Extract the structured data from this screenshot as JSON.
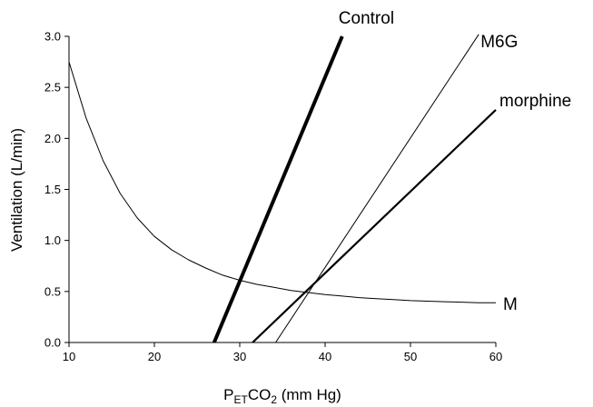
{
  "chart_data": {
    "type": "line",
    "title": "",
    "xlabel": {
      "main": "P",
      "sub": "ET",
      "mid": "CO",
      "sub2": "2",
      "rest": " (mm Hg)"
    },
    "ylabel": "Ventilation (L/min)",
    "xlim": [
      10,
      60
    ],
    "ylim": [
      0,
      3.0
    ],
    "xticks": [
      "10",
      "20",
      "30",
      "40",
      "50",
      "60"
    ],
    "yticks": [
      "0.0",
      "0.5",
      "1.0",
      "1.5",
      "2.0",
      "2.5",
      "3.0"
    ],
    "grid": false,
    "series": [
      {
        "name": "Control",
        "kind": "line",
        "points": [
          [
            27.0,
            0.0
          ],
          [
            42.0,
            3.0
          ]
        ],
        "weight": "heavy"
      },
      {
        "name": "M6G",
        "kind": "line",
        "points": [
          [
            34.2,
            0.0
          ],
          [
            58.0,
            3.02
          ]
        ],
        "weight": "thin"
      },
      {
        "name": "morphine",
        "kind": "line",
        "points": [
          [
            31.5,
            0.0
          ],
          [
            60.0,
            2.28
          ]
        ],
        "weight": "medium"
      },
      {
        "name": "M",
        "kind": "curve",
        "points": [
          [
            10,
            2.75
          ],
          [
            12,
            2.2
          ],
          [
            14,
            1.78
          ],
          [
            16,
            1.46
          ],
          [
            18,
            1.22
          ],
          [
            20,
            1.04
          ],
          [
            22,
            0.91
          ],
          [
            24,
            0.81
          ],
          [
            26,
            0.73
          ],
          [
            28,
            0.66
          ],
          [
            30,
            0.61
          ],
          [
            32,
            0.57
          ],
          [
            34,
            0.54
          ],
          [
            36,
            0.51
          ],
          [
            38,
            0.49
          ],
          [
            40,
            0.47
          ],
          [
            42,
            0.455
          ],
          [
            44,
            0.44
          ],
          [
            46,
            0.43
          ],
          [
            48,
            0.42
          ],
          [
            50,
            0.41
          ],
          [
            52,
            0.405
          ],
          [
            54,
            0.4
          ],
          [
            56,
            0.395
          ],
          [
            58,
            0.39
          ],
          [
            60,
            0.39
          ]
        ],
        "weight": "thin"
      }
    ]
  }
}
